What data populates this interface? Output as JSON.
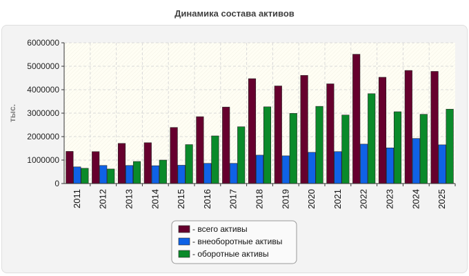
{
  "chart_data": {
    "type": "bar",
    "title": "Динамика состава активов",
    "ylabel": "тыс.",
    "xlabel": "",
    "ylim": [
      0,
      6000000
    ],
    "yticks": [
      0,
      1000000,
      2000000,
      3000000,
      4000000,
      5000000,
      6000000
    ],
    "ytick_labels": [
      "0",
      "1000000",
      "2000000",
      "3000000",
      "4000000",
      "5000000",
      "6000000"
    ],
    "grid": true,
    "legend_position": "bottom-center",
    "categories": [
      "2011",
      "2012",
      "2013",
      "2014",
      "2015",
      "2016",
      "2017",
      "2018",
      "2019",
      "2020",
      "2021",
      "2022",
      "2023",
      "2024",
      "2025"
    ],
    "series": [
      {
        "name": "- всего активы",
        "color": "#66002e",
        "values": [
          1370000,
          1360000,
          1710000,
          1740000,
          2390000,
          2850000,
          3260000,
          4470000,
          4160000,
          4610000,
          4250000,
          5510000,
          4530000,
          4820000,
          4780000
        ]
      },
      {
        "name": "- внеоборотные активы",
        "color": "#0f62e6",
        "values": [
          710000,
          770000,
          770000,
          760000,
          780000,
          860000,
          860000,
          1210000,
          1180000,
          1330000,
          1360000,
          1680000,
          1520000,
          1920000,
          1650000
        ]
      },
      {
        "name": "- оборотные активы",
        "color": "#0a8a2a",
        "values": [
          650000,
          620000,
          940000,
          1000000,
          1660000,
          2030000,
          2420000,
          3270000,
          2990000,
          3290000,
          2920000,
          3830000,
          3060000,
          2950000,
          3170000
        ]
      }
    ]
  }
}
